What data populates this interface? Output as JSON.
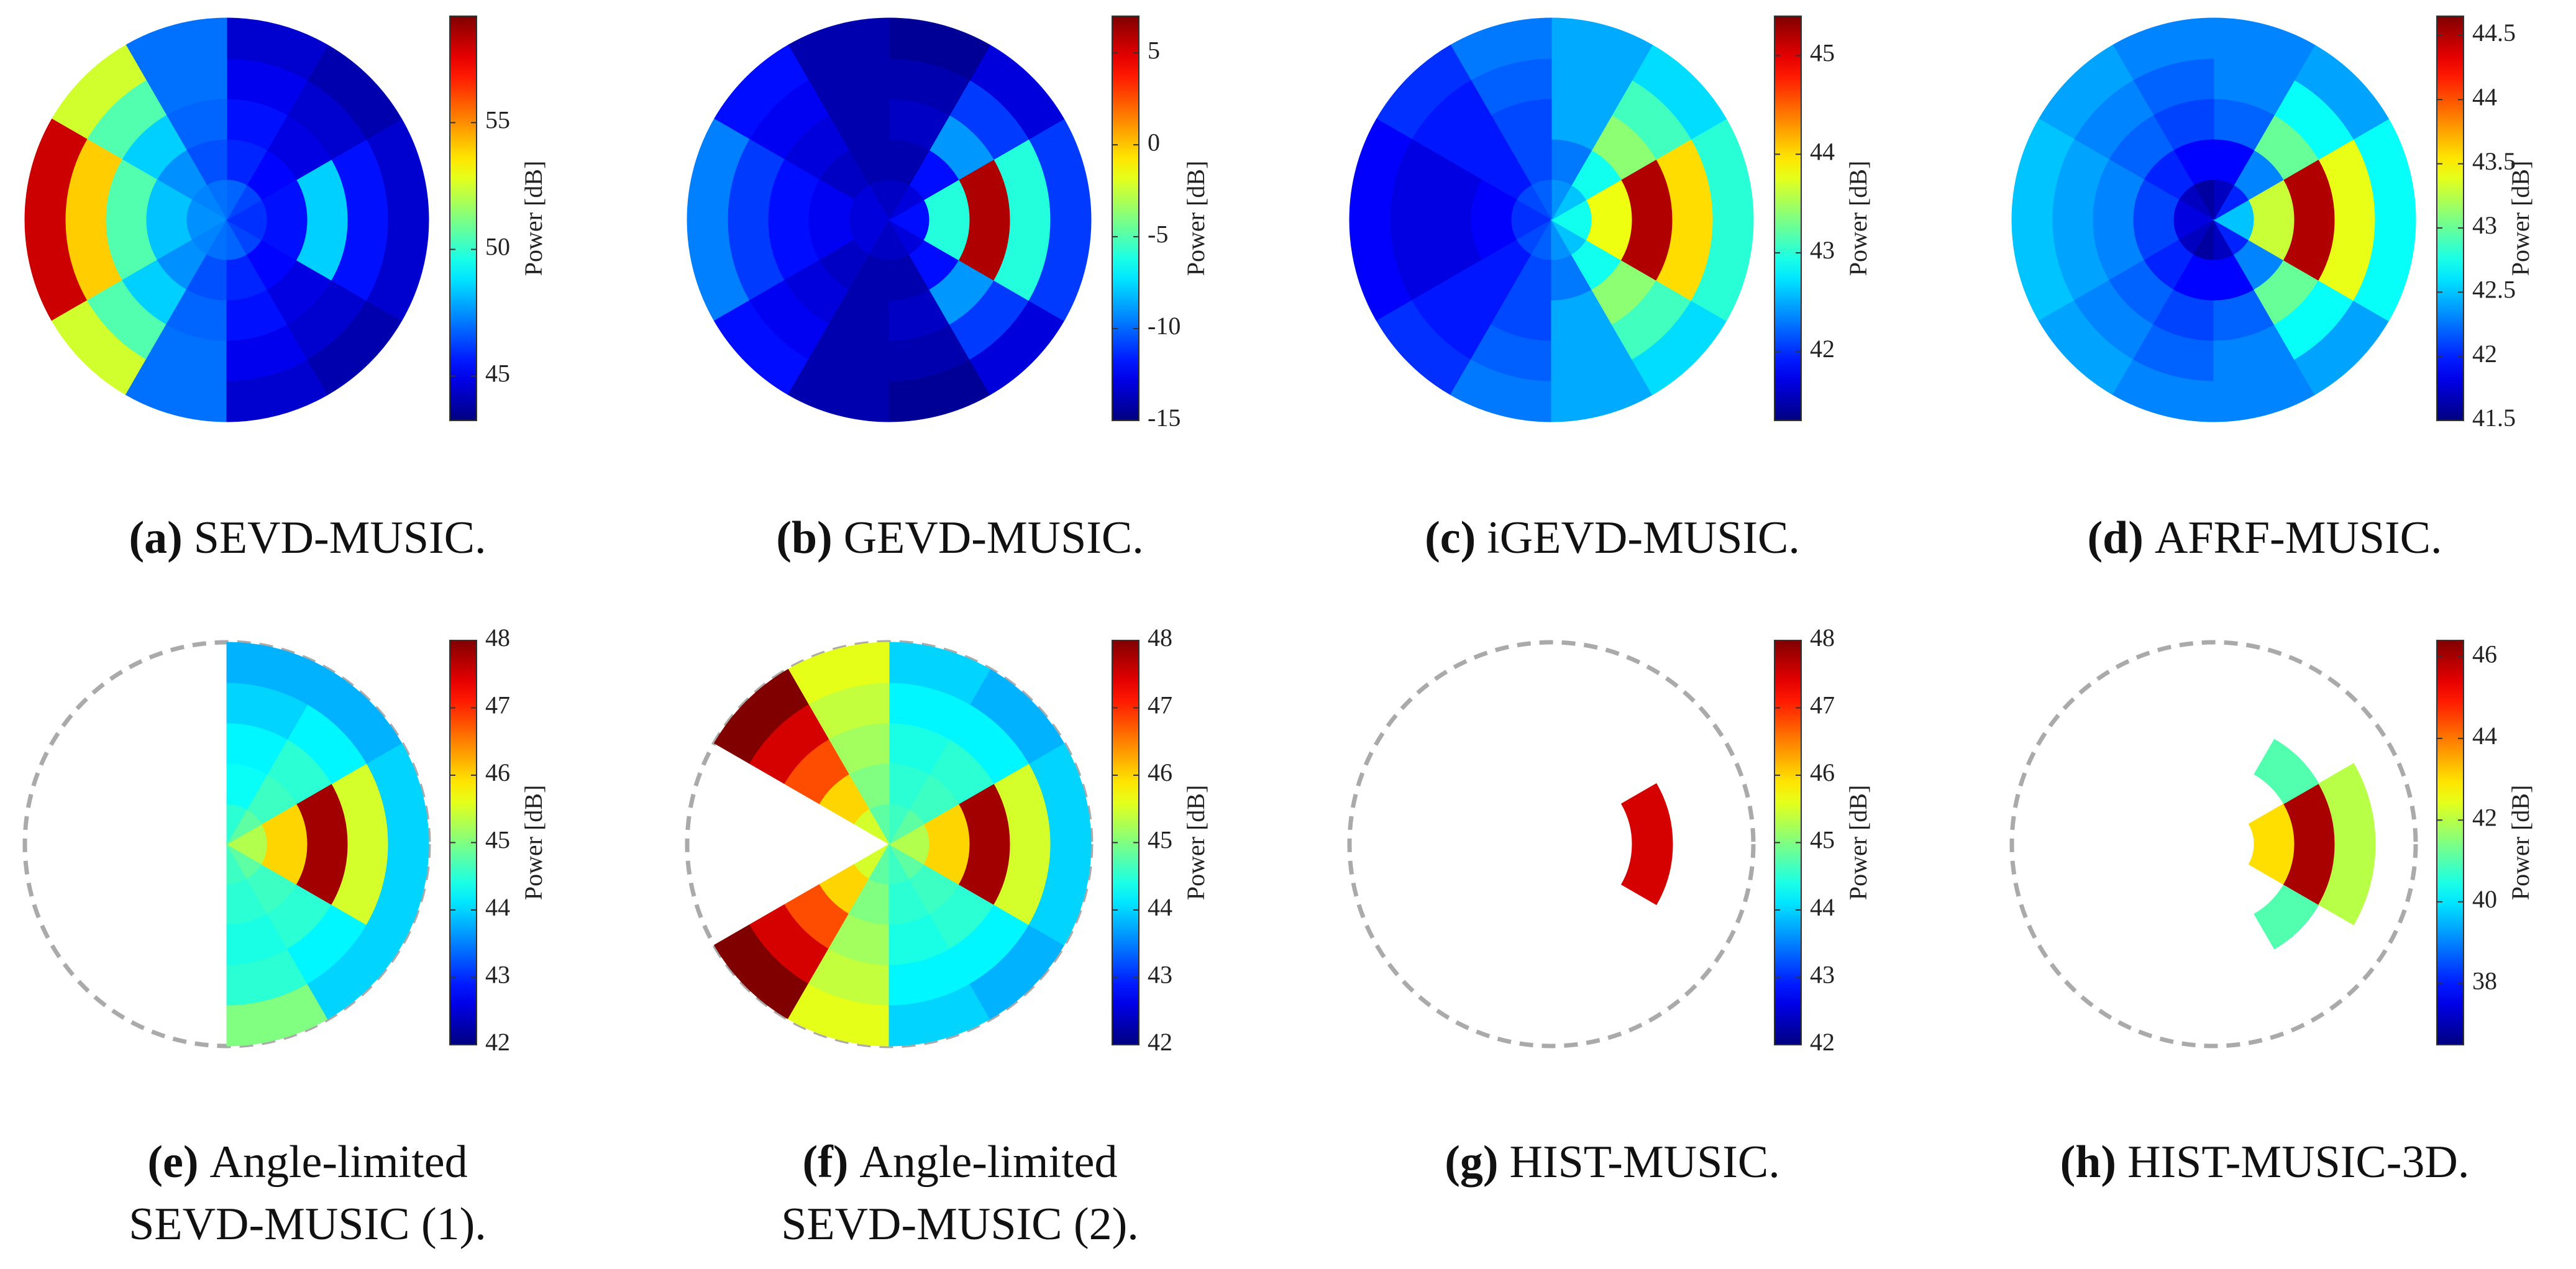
{
  "chart_data": [
    {
      "type": "polar-heatmap",
      "tag": "(a)",
      "caption": [
        "SEVD-MUSIC."
      ],
      "colormap": "jet",
      "r_bins": [
        0,
        0.2,
        0.4,
        0.6,
        0.8,
        1
      ],
      "theta_bins": [
        0,
        30,
        60,
        90,
        120,
        150,
        180,
        210,
        240,
        270,
        300,
        330,
        360
      ],
      "values": [
        [
          46,
          46.3,
          46.8,
          47,
          47.3,
          47.5,
          47.5,
          47.3,
          47,
          46.8,
          46.3,
          46
        ],
        [
          45.5,
          45.3,
          45.8,
          46.5,
          47.5,
          48.3,
          48.3,
          47.5,
          46.5,
          45.8,
          45.3,
          45.5
        ],
        [
          48.5,
          44.8,
          45.5,
          46.8,
          48.5,
          50.5,
          50.5,
          48.5,
          46.8,
          45.5,
          44.8,
          48.5
        ],
        [
          45.5,
          44.5,
          45,
          47,
          50.5,
          54,
          54,
          50.5,
          47,
          45,
          44.5,
          45.5
        ],
        [
          44.5,
          44,
          44.5,
          47,
          52.5,
          58,
          58,
          52.5,
          47,
          44.5,
          44,
          44.5
        ]
      ],
      "zlim": [
        43.25,
        59.2
      ],
      "zticks": [
        45,
        50,
        55
      ],
      "zlabel": "Power [dB]"
    },
    {
      "type": "polar-heatmap",
      "tag": "(b)",
      "caption": [
        "GEVD-MUSIC."
      ],
      "colormap": "jet",
      "r_bins": [
        0,
        0.2,
        0.4,
        0.6,
        0.8,
        1
      ],
      "theta_bins": [
        0,
        30,
        60,
        90,
        120,
        150,
        180,
        210,
        240,
        270,
        300,
        330,
        360
      ],
      "values": [
        [
          -12,
          -13,
          -13.5,
          -13.5,
          -13,
          -13,
          -13,
          -13,
          -13.5,
          -13.5,
          -13,
          -12
        ],
        [
          -6,
          -12,
          -14,
          -14,
          -13.5,
          -12.5,
          -12.5,
          -13.5,
          -14,
          -14,
          -12,
          -6
        ],
        [
          6,
          -9,
          -13.5,
          -14,
          -13,
          -12,
          -12,
          -13,
          -14,
          -13.5,
          -9,
          6
        ],
        [
          -6,
          -11,
          -14,
          -14,
          -12.5,
          -11,
          -11,
          -12.5,
          -14,
          -14,
          -11,
          -6
        ],
        [
          -11,
          -13,
          -14.5,
          -14,
          -12,
          -9.5,
          -9.5,
          -12,
          -14,
          -14.5,
          -13,
          -11
        ]
      ],
      "zlim": [
        -15,
        7
      ],
      "zticks": [
        -15,
        -10,
        -5,
        0,
        5
      ],
      "zlabel": "Power [dB]"
    },
    {
      "type": "polar-heatmap",
      "tag": "(c)",
      "caption": [
        "iGEVD-MUSIC."
      ],
      "colormap": "jet",
      "r_bins": [
        0,
        0.2,
        0.4,
        0.6,
        0.8,
        1
      ],
      "theta_bins": [
        0,
        30,
        60,
        90,
        120,
        150,
        180,
        210,
        240,
        270,
        300,
        330,
        360
      ],
      "values": [
        [
          42.9,
          42.6,
          42.4,
          42.2,
          42.1,
          42,
          42,
          42.1,
          42.2,
          42.4,
          42.6,
          42.9
        ],
        [
          43.8,
          42.9,
          42.3,
          42.1,
          41.9,
          41.8,
          41.8,
          41.9,
          42.1,
          42.3,
          42.9,
          43.8
        ],
        [
          45.2,
          43.4,
          42.5,
          42.1,
          41.9,
          41.7,
          41.7,
          41.9,
          42.1,
          42.5,
          43.4,
          45.2
        ],
        [
          44,
          43.1,
          42.5,
          42.2,
          41.9,
          41.7,
          41.7,
          41.9,
          42.2,
          42.5,
          43.1,
          44
        ],
        [
          43,
          42.7,
          42.5,
          42.3,
          42,
          41.8,
          41.8,
          42,
          42.3,
          42.5,
          42.7,
          43
        ]
      ],
      "zlim": [
        41.3,
        45.4
      ],
      "zticks": [
        42,
        43,
        44,
        45
      ],
      "zlabel": "Power [dB]"
    },
    {
      "type": "polar-heatmap",
      "tag": "(d)",
      "caption": [
        "AFRF-MUSIC."
      ],
      "colormap": "jet",
      "r_bins": [
        0,
        0.2,
        0.4,
        0.6,
        0.8,
        1
      ],
      "theta_bins": [
        0,
        30,
        60,
        90,
        120,
        150,
        180,
        210,
        240,
        270,
        300,
        330,
        360
      ],
      "values": [
        [
          42.5,
          42,
          41.7,
          41.6,
          41.7,
          41.8,
          41.8,
          41.7,
          41.6,
          41.7,
          42,
          42.5
        ],
        [
          43.3,
          42.3,
          41.9,
          41.9,
          42,
          42.1,
          42.1,
          42,
          41.9,
          41.9,
          42.3,
          43.3
        ],
        [
          44.5,
          43,
          42.2,
          42.1,
          42.2,
          42.3,
          42.3,
          42.2,
          42.1,
          42.2,
          43,
          44.5
        ],
        [
          43.4,
          42.7,
          42.3,
          42.2,
          42.3,
          42.4,
          42.4,
          42.3,
          42.2,
          42.3,
          42.7,
          43.4
        ],
        [
          42.7,
          42.4,
          42.3,
          42.3,
          42.4,
          42.5,
          42.5,
          42.4,
          42.3,
          42.3,
          42.4,
          42.7
        ]
      ],
      "zlim": [
        41.5,
        44.65
      ],
      "zticks": [
        41.5,
        42,
        42.5,
        43,
        43.5,
        44,
        44.5
      ],
      "zlabel": "Power [dB]"
    },
    {
      "type": "polar-heatmap",
      "tag": "(e)",
      "caption": [
        "Angle-limited",
        "SEVD-MUSIC (1)."
      ],
      "colormap": "jet",
      "outline": "dashed",
      "r_bins": [
        0,
        0.2,
        0.4,
        0.6,
        0.8,
        1
      ],
      "theta_bins": [
        0,
        30,
        60,
        90,
        120,
        150,
        180,
        210,
        240,
        270,
        300,
        330,
        360
      ],
      "values": [
        [
          45.3,
          44.8,
          44.5,
          null,
          null,
          null,
          null,
          null,
          null,
          44.6,
          44.8,
          45.3
        ],
        [
          46,
          44.6,
          44.3,
          null,
          null,
          null,
          null,
          null,
          null,
          44.5,
          44.6,
          46
        ],
        [
          47.8,
          44.5,
          44.2,
          null,
          null,
          null,
          null,
          null,
          null,
          44.4,
          44.5,
          47.8
        ],
        [
          45.5,
          44.2,
          44,
          null,
          null,
          null,
          null,
          null,
          null,
          44.5,
          44.2,
          45.5
        ],
        [
          44,
          43.8,
          43.8,
          null,
          null,
          null,
          null,
          null,
          null,
          45,
          44,
          44
        ]
      ],
      "zlim": [
        42,
        48
      ],
      "zticks": [
        42,
        43,
        44,
        45,
        46,
        47,
        48
      ],
      "zlabel": "Power [dB]"
    },
    {
      "type": "polar-heatmap",
      "tag": "(f)",
      "caption": [
        "Angle-limited",
        "SEVD-MUSIC (2)."
      ],
      "colormap": "jet",
      "outline": "dashed",
      "r_bins": [
        0,
        0.2,
        0.4,
        0.6,
        0.8,
        1
      ],
      "theta_bins": [
        0,
        30,
        60,
        90,
        120,
        150,
        180,
        210,
        240,
        270,
        300,
        330,
        360
      ],
      "values": [
        [
          45.3,
          44.8,
          44.6,
          44.8,
          45.5,
          null,
          null,
          45.5,
          44.8,
          44.6,
          44.8,
          45.3
        ],
        [
          46,
          44.6,
          44.5,
          45,
          46,
          null,
          null,
          46,
          45,
          44.5,
          44.6,
          46
        ],
        [
          47.8,
          44.5,
          44.4,
          45.2,
          46.8,
          null,
          null,
          46.8,
          45.2,
          44.4,
          44.5,
          47.8
        ],
        [
          45.5,
          44.2,
          44.2,
          45.4,
          47.5,
          null,
          null,
          47.5,
          45.4,
          44.2,
          44.2,
          45.5
        ],
        [
          44,
          43.8,
          44,
          45.6,
          48,
          null,
          null,
          48,
          45.6,
          44,
          43.8,
          44
        ]
      ],
      "zlim": [
        42,
        48
      ],
      "zticks": [
        42,
        43,
        44,
        45,
        46,
        47,
        48
      ],
      "zlabel": "Power [dB]"
    },
    {
      "type": "polar-heatmap",
      "tag": "(g)",
      "caption": [
        "HIST-MUSIC."
      ],
      "colormap": "jet",
      "outline": "dashed",
      "r_bins": [
        0,
        0.2,
        0.4,
        0.6,
        0.8,
        1
      ],
      "theta_bins": [
        0,
        30,
        60,
        90,
        120,
        150,
        180,
        210,
        240,
        270,
        300,
        330,
        360
      ],
      "values": [
        [
          null,
          null,
          null,
          null,
          null,
          null,
          null,
          null,
          null,
          null,
          null,
          null
        ],
        [
          null,
          null,
          null,
          null,
          null,
          null,
          null,
          null,
          null,
          null,
          null,
          null
        ],
        [
          47.5,
          null,
          null,
          null,
          null,
          null,
          null,
          null,
          null,
          null,
          null,
          47.5
        ],
        [
          null,
          null,
          null,
          null,
          null,
          null,
          null,
          null,
          null,
          null,
          null,
          null
        ],
        [
          null,
          null,
          null,
          null,
          null,
          null,
          null,
          null,
          null,
          null,
          null,
          null
        ]
      ],
      "zlim": [
        42,
        48
      ],
      "zticks": [
        42,
        43,
        44,
        45,
        46,
        47,
        48
      ],
      "zlabel": "Power [dB]"
    },
    {
      "type": "polar-heatmap",
      "tag": "(h)",
      "caption": [
        "HIST-MUSIC-3D."
      ],
      "colormap": "jet",
      "outline": "dashed",
      "r_bins": [
        0,
        0.2,
        0.4,
        0.6,
        0.8,
        1
      ],
      "theta_bins": [
        0,
        30,
        60,
        90,
        120,
        150,
        180,
        210,
        240,
        270,
        300,
        330,
        360
      ],
      "values": [
        [
          null,
          null,
          null,
          null,
          null,
          null,
          null,
          null,
          null,
          null,
          null,
          null
        ],
        [
          43,
          null,
          null,
          null,
          null,
          null,
          null,
          null,
          null,
          null,
          null,
          43
        ],
        [
          46,
          41,
          null,
          null,
          null,
          null,
          null,
          null,
          null,
          null,
          41,
          46
        ],
        [
          42,
          null,
          null,
          null,
          null,
          null,
          null,
          null,
          null,
          null,
          null,
          42
        ],
        [
          null,
          null,
          null,
          null,
          null,
          null,
          null,
          null,
          null,
          null,
          null,
          null
        ]
      ],
      "zlim": [
        36.5,
        46.4
      ],
      "zticks": [
        38,
        40,
        42,
        44,
        46
      ],
      "zlabel": "Power [dB]"
    }
  ]
}
